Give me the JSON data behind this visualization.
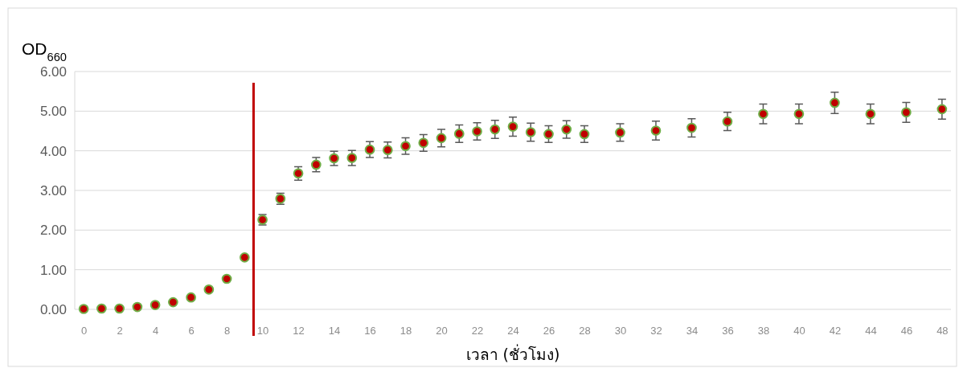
{
  "chart_data": {
    "type": "scatter",
    "ylabel": "OD$_{660}$",
    "xlabel": "เวลา (ชั่วโมง)",
    "x": [
      0,
      1,
      2,
      3,
      4,
      5,
      6,
      7,
      8,
      9,
      10,
      11,
      12,
      13,
      14,
      15,
      16,
      17,
      18,
      19,
      20,
      21,
      22,
      23,
      24,
      25,
      26,
      27,
      28,
      30,
      32,
      34,
      36,
      38,
      40,
      42,
      44,
      46,
      48
    ],
    "series": [
      {
        "color": "#c00000",
        "values": [
          0.01,
          0.02,
          0.02,
          0.06,
          0.11,
          0.18,
          0.3,
          0.5,
          0.77,
          1.31,
          2.26,
          2.79,
          3.43,
          3.65,
          3.81,
          3.82,
          4.03,
          4.02,
          4.12,
          4.2,
          4.32,
          4.43,
          4.49,
          4.54,
          4.61,
          4.47,
          4.42,
          4.54,
          4.42,
          4.46,
          4.51,
          4.58,
          4.74,
          4.93,
          4.93,
          5.21,
          4.93,
          4.97,
          5.05
        ],
        "errors": [
          null,
          null,
          null,
          null,
          null,
          null,
          null,
          null,
          null,
          null,
          0.13,
          0.14,
          0.17,
          0.18,
          0.18,
          0.19,
          0.2,
          0.2,
          0.21,
          0.21,
          0.22,
          0.22,
          0.22,
          0.23,
          0.24,
          0.23,
          0.21,
          0.22,
          0.21,
          0.22,
          0.24,
          0.23,
          0.23,
          0.25,
          0.25,
          0.27,
          0.25,
          0.25,
          0.25
        ]
      }
    ],
    "marker": "circle",
    "xlim": [
      -0.5,
      48.5
    ],
    "xticks": [
      0,
      2,
      4,
      6,
      8,
      10,
      12,
      14,
      16,
      18,
      20,
      22,
      24,
      26,
      28,
      30,
      32,
      34,
      36,
      38,
      40,
      42,
      44,
      46,
      48
    ],
    "ylim": [
      0,
      6
    ],
    "yticks": [
      {
        "value": 0,
        "label": "0.00"
      },
      {
        "value": 1,
        "label": "1.00"
      },
      {
        "value": 2,
        "label": "2.00"
      },
      {
        "value": 3,
        "label": "3.00"
      },
      {
        "value": 4,
        "label": "4.00"
      },
      {
        "value": 5,
        "label": "5.00"
      },
      {
        "value": 6,
        "label": "6.00"
      }
    ],
    "grid": "y",
    "ref_lines": [
      {
        "axis": "x",
        "value": 9.5,
        "color": "#c00000"
      }
    ]
  }
}
